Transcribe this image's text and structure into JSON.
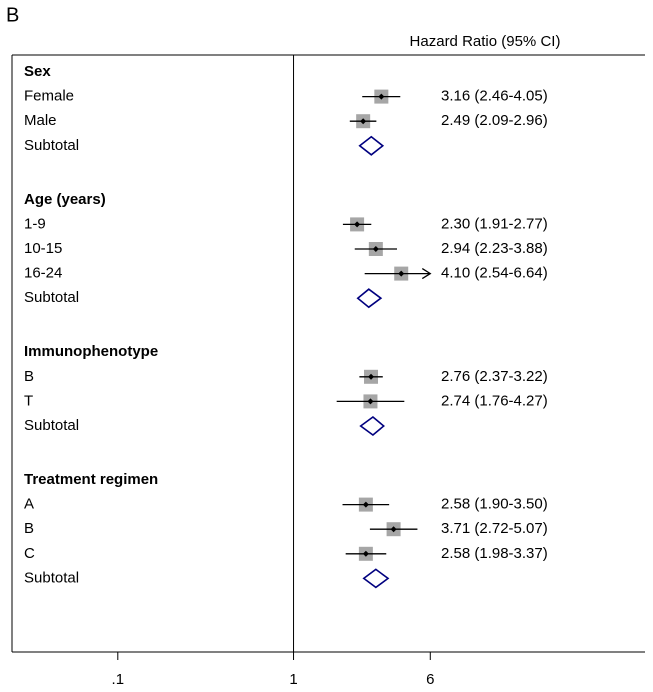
{
  "chart_data": {
    "type": "forest",
    "panel": "B",
    "header": "Hazard Ratio (95% CI)",
    "xscale": "log",
    "xlim": [
      0.025,
      100
    ],
    "xticks": [
      {
        "value": 0.1,
        "label": ".1"
      },
      1,
      6
    ],
    "reference": 1,
    "box_color": "#a6a6a6",
    "diamond_color": "#00007f",
    "groups": [
      {
        "name": "Sex",
        "rows": [
          {
            "name": "Female",
            "hr": 3.16,
            "ci": [
              2.46,
              4.05
            ],
            "label": "3.16 (2.46-4.05)"
          },
          {
            "name": "Male",
            "hr": 2.49,
            "ci": [
              2.09,
              2.96
            ],
            "label": "2.49 (2.09-2.96)"
          }
        ],
        "subtotal": {
          "name": "Subtotal",
          "hr": 2.77,
          "ci": [
            2.38,
            3.22
          ]
        }
      },
      {
        "name": "Age (years)",
        "rows": [
          {
            "name": "1-9",
            "hr": 2.3,
            "ci": [
              1.91,
              2.77
            ],
            "label": "2.30 (1.91-2.77)"
          },
          {
            "name": "10-15",
            "hr": 2.94,
            "ci": [
              2.23,
              3.88
            ],
            "label": "2.94 (2.23-3.88)"
          },
          {
            "name": "16-24",
            "hr": 4.1,
            "ci": [
              2.54,
              6.64
            ],
            "label": "4.10 (2.54-6.64)"
          }
        ],
        "subtotal": {
          "name": "Subtotal",
          "hr": 2.68,
          "ci": [
            2.32,
            3.14
          ]
        }
      },
      {
        "name": "Immunophenotype",
        "rows": [
          {
            "name": "B",
            "hr": 2.76,
            "ci": [
              2.37,
              3.22
            ],
            "label": "2.76 (2.37-3.22)"
          },
          {
            "name": "T",
            "hr": 2.74,
            "ci": [
              1.76,
              4.27
            ],
            "label": "2.74 (1.76-4.27)"
          }
        ],
        "subtotal": {
          "name": "Subtotal",
          "hr": 2.83,
          "ci": [
            2.41,
            3.26
          ]
        }
      },
      {
        "name": "Treatment regimen",
        "rows": [
          {
            "name": "A",
            "hr": 2.58,
            "ci": [
              1.9,
              3.5
            ],
            "label": "2.58 (1.90-3.50)"
          },
          {
            "name": "B",
            "hr": 3.71,
            "ci": [
              2.72,
              5.07
            ],
            "label": "3.71 (2.72-5.07)"
          },
          {
            "name": "C",
            "hr": 2.58,
            "ci": [
              1.98,
              3.37
            ],
            "label": "2.58 (1.98-3.37)"
          }
        ],
        "subtotal": {
          "name": "Subtotal",
          "hr": 2.94,
          "ci": [
            2.51,
            3.45
          ]
        }
      }
    ]
  }
}
